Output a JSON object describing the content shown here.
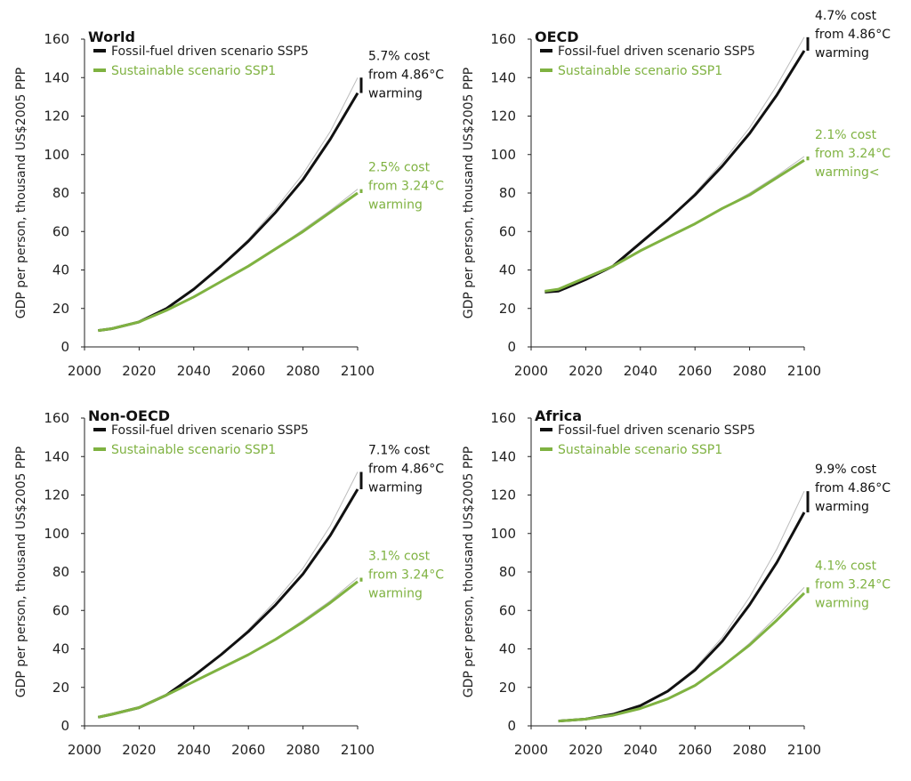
{
  "colors": {
    "fossil": "#111111",
    "sustainable": "#7fb241",
    "no_damage": "#bbbbbb",
    "axis": "#222222",
    "text": "#222222"
  },
  "shared": {
    "ylabel": "GDP per person, thousand US$2005 PPP",
    "xticks": [
      "2000",
      "2020",
      "2040",
      "2060",
      "2080",
      "2100"
    ],
    "yticks": [
      "0",
      "20",
      "40",
      "60",
      "80",
      "100",
      "120",
      "140",
      "160"
    ],
    "legend": [
      "Fossil-fuel driven scenario SSP5",
      "Sustainable scenario SSP1"
    ]
  },
  "chart_data": [
    {
      "type": "line",
      "title": "World",
      "xlim": [
        2000,
        2100
      ],
      "ylim": [
        0,
        160
      ],
      "grid": false,
      "legend_position": "top-left",
      "x": [
        2005,
        2010,
        2020,
        2030,
        2040,
        2050,
        2060,
        2070,
        2080,
        2090,
        2100
      ],
      "series": [
        {
          "name": "Fossil-fuel driven scenario SSP5",
          "values": [
            8.5,
            9.5,
            13,
            20,
            30,
            42,
            55,
            70,
            87,
            108,
            132
          ]
        },
        {
          "name": "Sustainable scenario SSP1",
          "values": [
            8.5,
            9.5,
            13,
            19,
            26,
            34,
            42,
            51,
            60,
            70,
            80
          ]
        }
      ],
      "no_damage": {
        "fossil": [
          8.5,
          9.5,
          13,
          20,
          30,
          42,
          56,
          72,
          90,
          112,
          140
        ],
        "sustainable": [
          8.5,
          9.5,
          13,
          19,
          26,
          34,
          42,
          51,
          61,
          71,
          82
        ]
      },
      "annotations": [
        {
          "series": 0,
          "lines": [
            "5.7% cost",
            "from 4.86°C",
            "warming"
          ]
        },
        {
          "series": 1,
          "lines": [
            "2.5% cost",
            "from 3.24°C",
            "warming"
          ]
        }
      ]
    },
    {
      "type": "line",
      "title": "OECD",
      "xlim": [
        2000,
        2100
      ],
      "ylim": [
        0,
        160
      ],
      "grid": false,
      "legend_position": "top-left",
      "x": [
        2005,
        2010,
        2020,
        2030,
        2040,
        2050,
        2060,
        2070,
        2080,
        2090,
        2100
      ],
      "series": [
        {
          "name": "Fossil-fuel driven scenario SSP5",
          "values": [
            28.5,
            29,
            35,
            42,
            54,
            66,
            79,
            94,
            111,
            131,
            154
          ]
        },
        {
          "name": "Sustainable scenario SSP1",
          "values": [
            29,
            30,
            36,
            42,
            50,
            57,
            64,
            72,
            79,
            88,
            97
          ]
        }
      ],
      "no_damage": {
        "fossil": [
          28.5,
          29,
          35,
          42,
          54,
          66,
          80,
          96,
          114,
          136,
          161
        ],
        "sustainable": [
          29,
          30,
          36,
          42,
          50,
          57,
          64,
          72,
          80,
          89,
          99
        ]
      },
      "annotations": [
        {
          "series": 0,
          "lines": [
            "4.7% cost",
            "from 4.86°C",
            "warming"
          ]
        },
        {
          "series": 1,
          "lines": [
            "2.1% cost",
            "from 3.24°C",
            "warming<"
          ]
        }
      ]
    },
    {
      "type": "line",
      "title": "Non-OECD",
      "xlim": [
        2000,
        2100
      ],
      "ylim": [
        0,
        160
      ],
      "grid": false,
      "legend_position": "top-left",
      "x": [
        2005,
        2010,
        2020,
        2030,
        2040,
        2050,
        2060,
        2070,
        2080,
        2090,
        2100
      ],
      "series": [
        {
          "name": "Fossil-fuel driven scenario SSP5",
          "values": [
            4.5,
            6,
            9.5,
            16,
            26,
            37,
            49,
            63,
            79,
            99,
            123
          ]
        },
        {
          "name": "Sustainable scenario SSP1",
          "values": [
            4.5,
            6,
            9.5,
            16,
            23,
            30,
            37,
            45,
            54,
            64,
            75
          ]
        }
      ],
      "no_damage": {
        "fossil": [
          4.5,
          6,
          9.5,
          16,
          26,
          37,
          50,
          65,
          82,
          104,
          132
        ],
        "sustainable": [
          4.5,
          6,
          9.5,
          16,
          23,
          30,
          37,
          45,
          55,
          65,
          77
        ]
      },
      "annotations": [
        {
          "series": 0,
          "lines": [
            "7.1% cost",
            "from 4.86°C",
            "warming"
          ]
        },
        {
          "series": 1,
          "lines": [
            "3.1% cost",
            "from 3.24°C",
            "warming"
          ]
        }
      ]
    },
    {
      "type": "line",
      "title": "Africa",
      "xlim": [
        2000,
        2100
      ],
      "ylim": [
        0,
        160
      ],
      "grid": false,
      "legend_position": "top-left",
      "x": [
        2010,
        2020,
        2030,
        2040,
        2050,
        2060,
        2070,
        2080,
        2090,
        2100
      ],
      "series": [
        {
          "name": "Fossil-fuel driven scenario SSP5",
          "values": [
            2.5,
            3.5,
            6,
            10.5,
            18,
            29,
            44,
            63,
            85,
            111
          ]
        },
        {
          "name": "Sustainable scenario SSP1",
          "values": [
            2.5,
            3.5,
            5.5,
            9,
            14,
            21,
            31,
            42,
            55,
            69
          ]
        }
      ],
      "no_damage": {
        "fossil": [
          2.5,
          3.5,
          6,
          10.5,
          18,
          30,
          46,
          67,
          92,
          122
        ],
        "sustainable": [
          2.5,
          3.5,
          5.5,
          9,
          14,
          21,
          31,
          43,
          57,
          72
        ]
      },
      "annotations": [
        {
          "series": 0,
          "lines": [
            "9.9% cost",
            "from 4.86°C",
            "warming"
          ]
        },
        {
          "series": 1,
          "lines": [
            "4.1% cost",
            "from 3.24°C",
            "warming"
          ]
        }
      ]
    }
  ]
}
